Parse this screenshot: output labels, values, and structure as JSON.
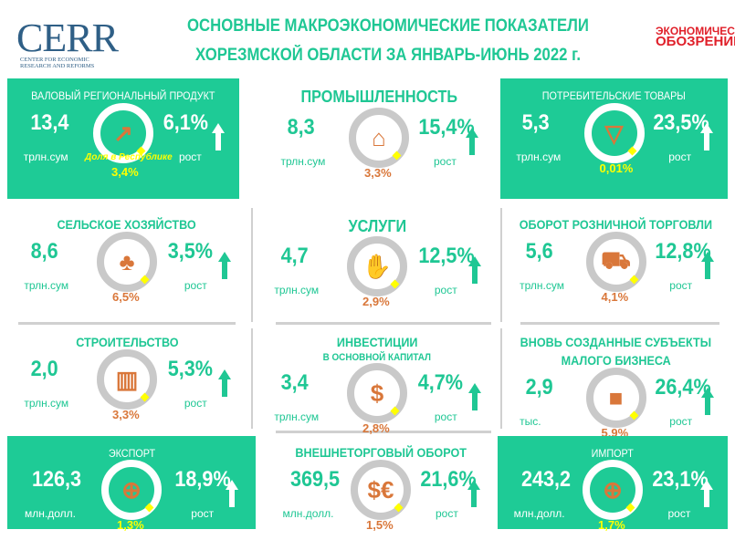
{
  "header": {
    "title_line1": "ОСНОВНЫЕ МАКРОЭКОНОМИЧЕСКИЕ ПОКАЗАТЕЛИ",
    "title_line2": "ХОРЕЗМСКОЙ ОБЛАСТИ ЗА ЯНВАРЬ-ИЮНЬ 2022 г.",
    "logo": {
      "text": "CERR",
      "subtitle_line1": "Center for Economic",
      "subtitle_line2": "Research and Reforms"
    },
    "partner_logo": {
      "line1": "ЭКОНОМИЧЕСКОЕ",
      "line2": "ОБОЗРЕНИЕ"
    }
  },
  "colors": {
    "green": "#1ecb96",
    "orange": "#d9773a",
    "yellow": "#ffff00",
    "ring": "#c9c9c9"
  },
  "cards": [
    {
      "title": "ВАЛОВЫЙ РЕГИОНАЛЬНЫЙ ПРОДУКТ",
      "value": "13,4",
      "unit": "трлн.сум",
      "share_label": "Доля в Республике",
      "share": "3,4%",
      "growth": "6,1%",
      "growth_label": "рост",
      "icon": "chart-growth-icon",
      "green": true
    },
    {
      "title": "ПРОМЫШЛЕННОСТЬ",
      "value": "8,3",
      "unit": "трлн.сум",
      "share": "3,3%",
      "growth": "15,4%",
      "growth_label": "рост",
      "icon": "factory-icon",
      "green": false
    },
    {
      "title": "ПОТРЕБИТЕЛЬСКИЕ ТОВАРЫ",
      "value": "5,3",
      "unit": "трлн.сум",
      "share": "0,01%",
      "growth": "23,5%",
      "growth_label": "рост",
      "icon": "tshirt-icon",
      "green": true
    },
    {
      "title": "СЕЛЬСКОЕ ХОЗЯЙСТВО",
      "value": "8,6",
      "unit": "трлн.сум",
      "share": "6,5%",
      "growth": "3,5%",
      "growth_label": "рост",
      "icon": "shovel-plant-icon",
      "green": false
    },
    {
      "title": "УСЛУГИ",
      "value": "4,7",
      "unit": "трлн.сум",
      "share": "2,9%",
      "growth": "12,5%",
      "growth_label": "рост",
      "icon": "hand-service-icon",
      "green": false
    },
    {
      "title": "ОБОРОТ РОЗНИЧНОЙ ТОРГОВЛИ",
      "value": "5,6",
      "unit": "трлн.сум",
      "share": "4,1%",
      "growth": "12,8%",
      "growth_label": "рост",
      "icon": "shopping-cart-icon",
      "green": false
    },
    {
      "title": "СТРОИТЕЛЬСТВО",
      "value": "2,0",
      "unit": "трлн.сум",
      "share": "3,3%",
      "growth": "5,3%",
      "growth_label": "рост",
      "icon": "building-icon",
      "green": false
    },
    {
      "title": "ИНВЕСТИЦИИ",
      "subtitle": "В ОСНОВНОЙ КАПИТАЛ",
      "value": "3,4",
      "unit": "трлн.сум",
      "share": "2,8%",
      "growth": "4,7%",
      "growth_label": "рост",
      "icon": "money-hand-icon",
      "green": false
    },
    {
      "title": "ВНОВЬ СОЗДАННЫЕ СУБЪЕКТЫ",
      "title2": "МАЛОГО БИЗНЕСА",
      "value": "2,9",
      "unit": "тыс.",
      "share": "5,9%",
      "growth": "26,4%",
      "growth_label": "рост",
      "icon": "briefcase-icon",
      "green": false
    },
    {
      "title": "ЭКСПОРТ",
      "value": "126,3",
      "unit": "млн.долл.",
      "share": "1,3%",
      "growth": "18,9%",
      "growth_label": "рост",
      "icon": "globe-export-icon",
      "green": true
    },
    {
      "title": "ВНЕШНЕТОРГОВЫЙ ОБОРОТ",
      "value": "369,5",
      "unit": "млн.долл.",
      "share": "1,5%",
      "growth": "21,6%",
      "growth_label": "рост",
      "icon": "currency-exchange-icon",
      "green": false
    },
    {
      "title": "ИМПОРТ",
      "value": "243,2",
      "unit": "млн.долл.",
      "share": "1,7%",
      "growth": "23,1%",
      "growth_label": "рост",
      "icon": "globe-import-icon",
      "green": true
    }
  ]
}
